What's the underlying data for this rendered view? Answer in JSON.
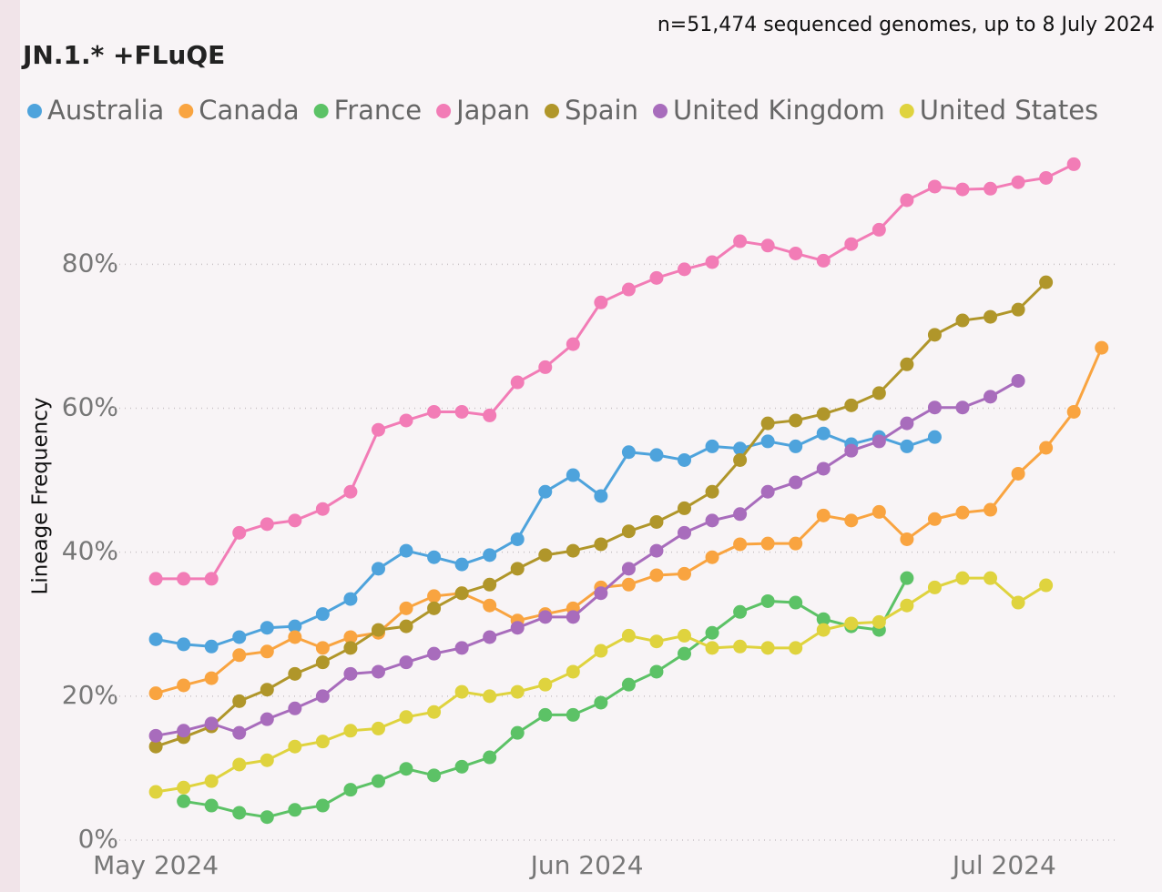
{
  "chart_data": {
    "type": "line",
    "title": "JN.1.* +FLuQE",
    "subtitle": "n=51,474 sequenced genomes, up to 8 July 2024",
    "y_label": "Lineage Frequency",
    "x": [
      0,
      2,
      4,
      6,
      8,
      10,
      12,
      14,
      16,
      18,
      20,
      22,
      24,
      26,
      28,
      30,
      32,
      34,
      36,
      38,
      40,
      42,
      44,
      46,
      48,
      50,
      52,
      54,
      56,
      58,
      60,
      62,
      64,
      66,
      68
    ],
    "xlim": [
      -4,
      69
    ],
    "xticks": [
      {
        "value": 0,
        "label": "May 2024"
      },
      {
        "value": 31,
        "label": "Jun 2024"
      },
      {
        "value": 61,
        "label": "Jul 2024"
      }
    ],
    "ylim": [
      0,
      98
    ],
    "yticks": [
      {
        "value": 0,
        "label": "0%"
      },
      {
        "value": 20,
        "label": "20%"
      },
      {
        "value": 40,
        "label": "40%"
      },
      {
        "value": 60,
        "label": "60%"
      },
      {
        "value": 80,
        "label": "80%"
      }
    ],
    "grid": true,
    "legend": "top",
    "series": [
      {
        "name": "Australia",
        "color": "#4ea3dc",
        "values": [
          27.9,
          27.2,
          26.9,
          28.2,
          29.5,
          29.7,
          31.4,
          33.5,
          37.7,
          40.2,
          39.3,
          38.3,
          39.6,
          41.8,
          48.4,
          50.7,
          47.8,
          53.9,
          53.5,
          52.8,
          54.7,
          54.4,
          55.4,
          54.7,
          56.5,
          55,
          56,
          54.7,
          56,
          null,
          null,
          null,
          null,
          null,
          null
        ]
      },
      {
        "name": "Canada",
        "color": "#f9a440",
        "values": [
          20.4,
          21.5,
          22.5,
          25.7,
          26.2,
          28.2,
          26.7,
          28.2,
          28.8,
          32.2,
          33.9,
          34.3,
          32.6,
          30.5,
          31.4,
          32.2,
          35.1,
          35.5,
          36.8,
          37,
          39.3,
          41.1,
          41.2,
          41.2,
          45.1,
          44.4,
          45.6,
          41.8,
          44.6,
          45.5,
          45.9,
          50.9,
          54.5,
          59.5,
          68.4
        ]
      },
      {
        "name": "France",
        "color": "#5cc266",
        "values": [
          null,
          5.4,
          4.8,
          3.8,
          3.2,
          4.2,
          4.8,
          7,
          8.2,
          9.9,
          9,
          10.2,
          11.5,
          14.9,
          17.4,
          17.4,
          19.1,
          21.6,
          23.4,
          25.9,
          28.8,
          31.7,
          33.2,
          33,
          30.7,
          29.7,
          29.2,
          36.4,
          null,
          null,
          null,
          null,
          null,
          null,
          null
        ]
      },
      {
        "name": "Japan",
        "color": "#f27cb6",
        "values": [
          36.3,
          36.3,
          36.3,
          42.7,
          43.9,
          44.4,
          46,
          48.4,
          57,
          58.3,
          59.5,
          59.5,
          59,
          63.6,
          65.7,
          68.9,
          74.7,
          76.5,
          78.1,
          79.3,
          80.3,
          83.2,
          82.6,
          81.5,
          80.5,
          82.8,
          84.8,
          88.9,
          90.8,
          90.4,
          90.5,
          91.4,
          92,
          93.9,
          null
        ]
      },
      {
        "name": "Spain",
        "color": "#b0962a",
        "values": [
          13,
          14.3,
          15.8,
          19.3,
          20.9,
          23.1,
          24.7,
          26.7,
          29.2,
          29.7,
          32.2,
          34.3,
          35.5,
          37.7,
          39.6,
          40.2,
          41.1,
          42.9,
          44.2,
          46.1,
          48.4,
          52.8,
          57.9,
          58.3,
          59.2,
          60.4,
          62.1,
          66.1,
          70.2,
          72.2,
          72.7,
          73.7,
          77.5,
          null,
          null
        ]
      },
      {
        "name": "United Kingdom",
        "color": "#a86cbc",
        "values": [
          14.5,
          15.2,
          16.2,
          14.9,
          16.8,
          18.3,
          20,
          23.1,
          23.4,
          24.7,
          25.9,
          26.7,
          28.2,
          29.5,
          31,
          31,
          34.3,
          37.7,
          40.2,
          42.7,
          44.4,
          45.3,
          48.4,
          49.7,
          51.6,
          54.1,
          55.4,
          57.9,
          60.1,
          60.1,
          61.6,
          63.8,
          null,
          null,
          null
        ]
      },
      {
        "name": "United States",
        "color": "#dfd33e",
        "values": [
          6.7,
          7.3,
          8.2,
          10.5,
          11.1,
          13,
          13.7,
          15.2,
          15.5,
          17.1,
          17.8,
          20.6,
          20,
          20.6,
          21.6,
          23.4,
          26.3,
          28.4,
          27.6,
          28.4,
          26.7,
          26.9,
          26.7,
          26.7,
          29.2,
          30.1,
          30.3,
          32.6,
          35.1,
          36.4,
          36.4,
          33,
          35.4,
          null,
          null
        ]
      }
    ]
  }
}
